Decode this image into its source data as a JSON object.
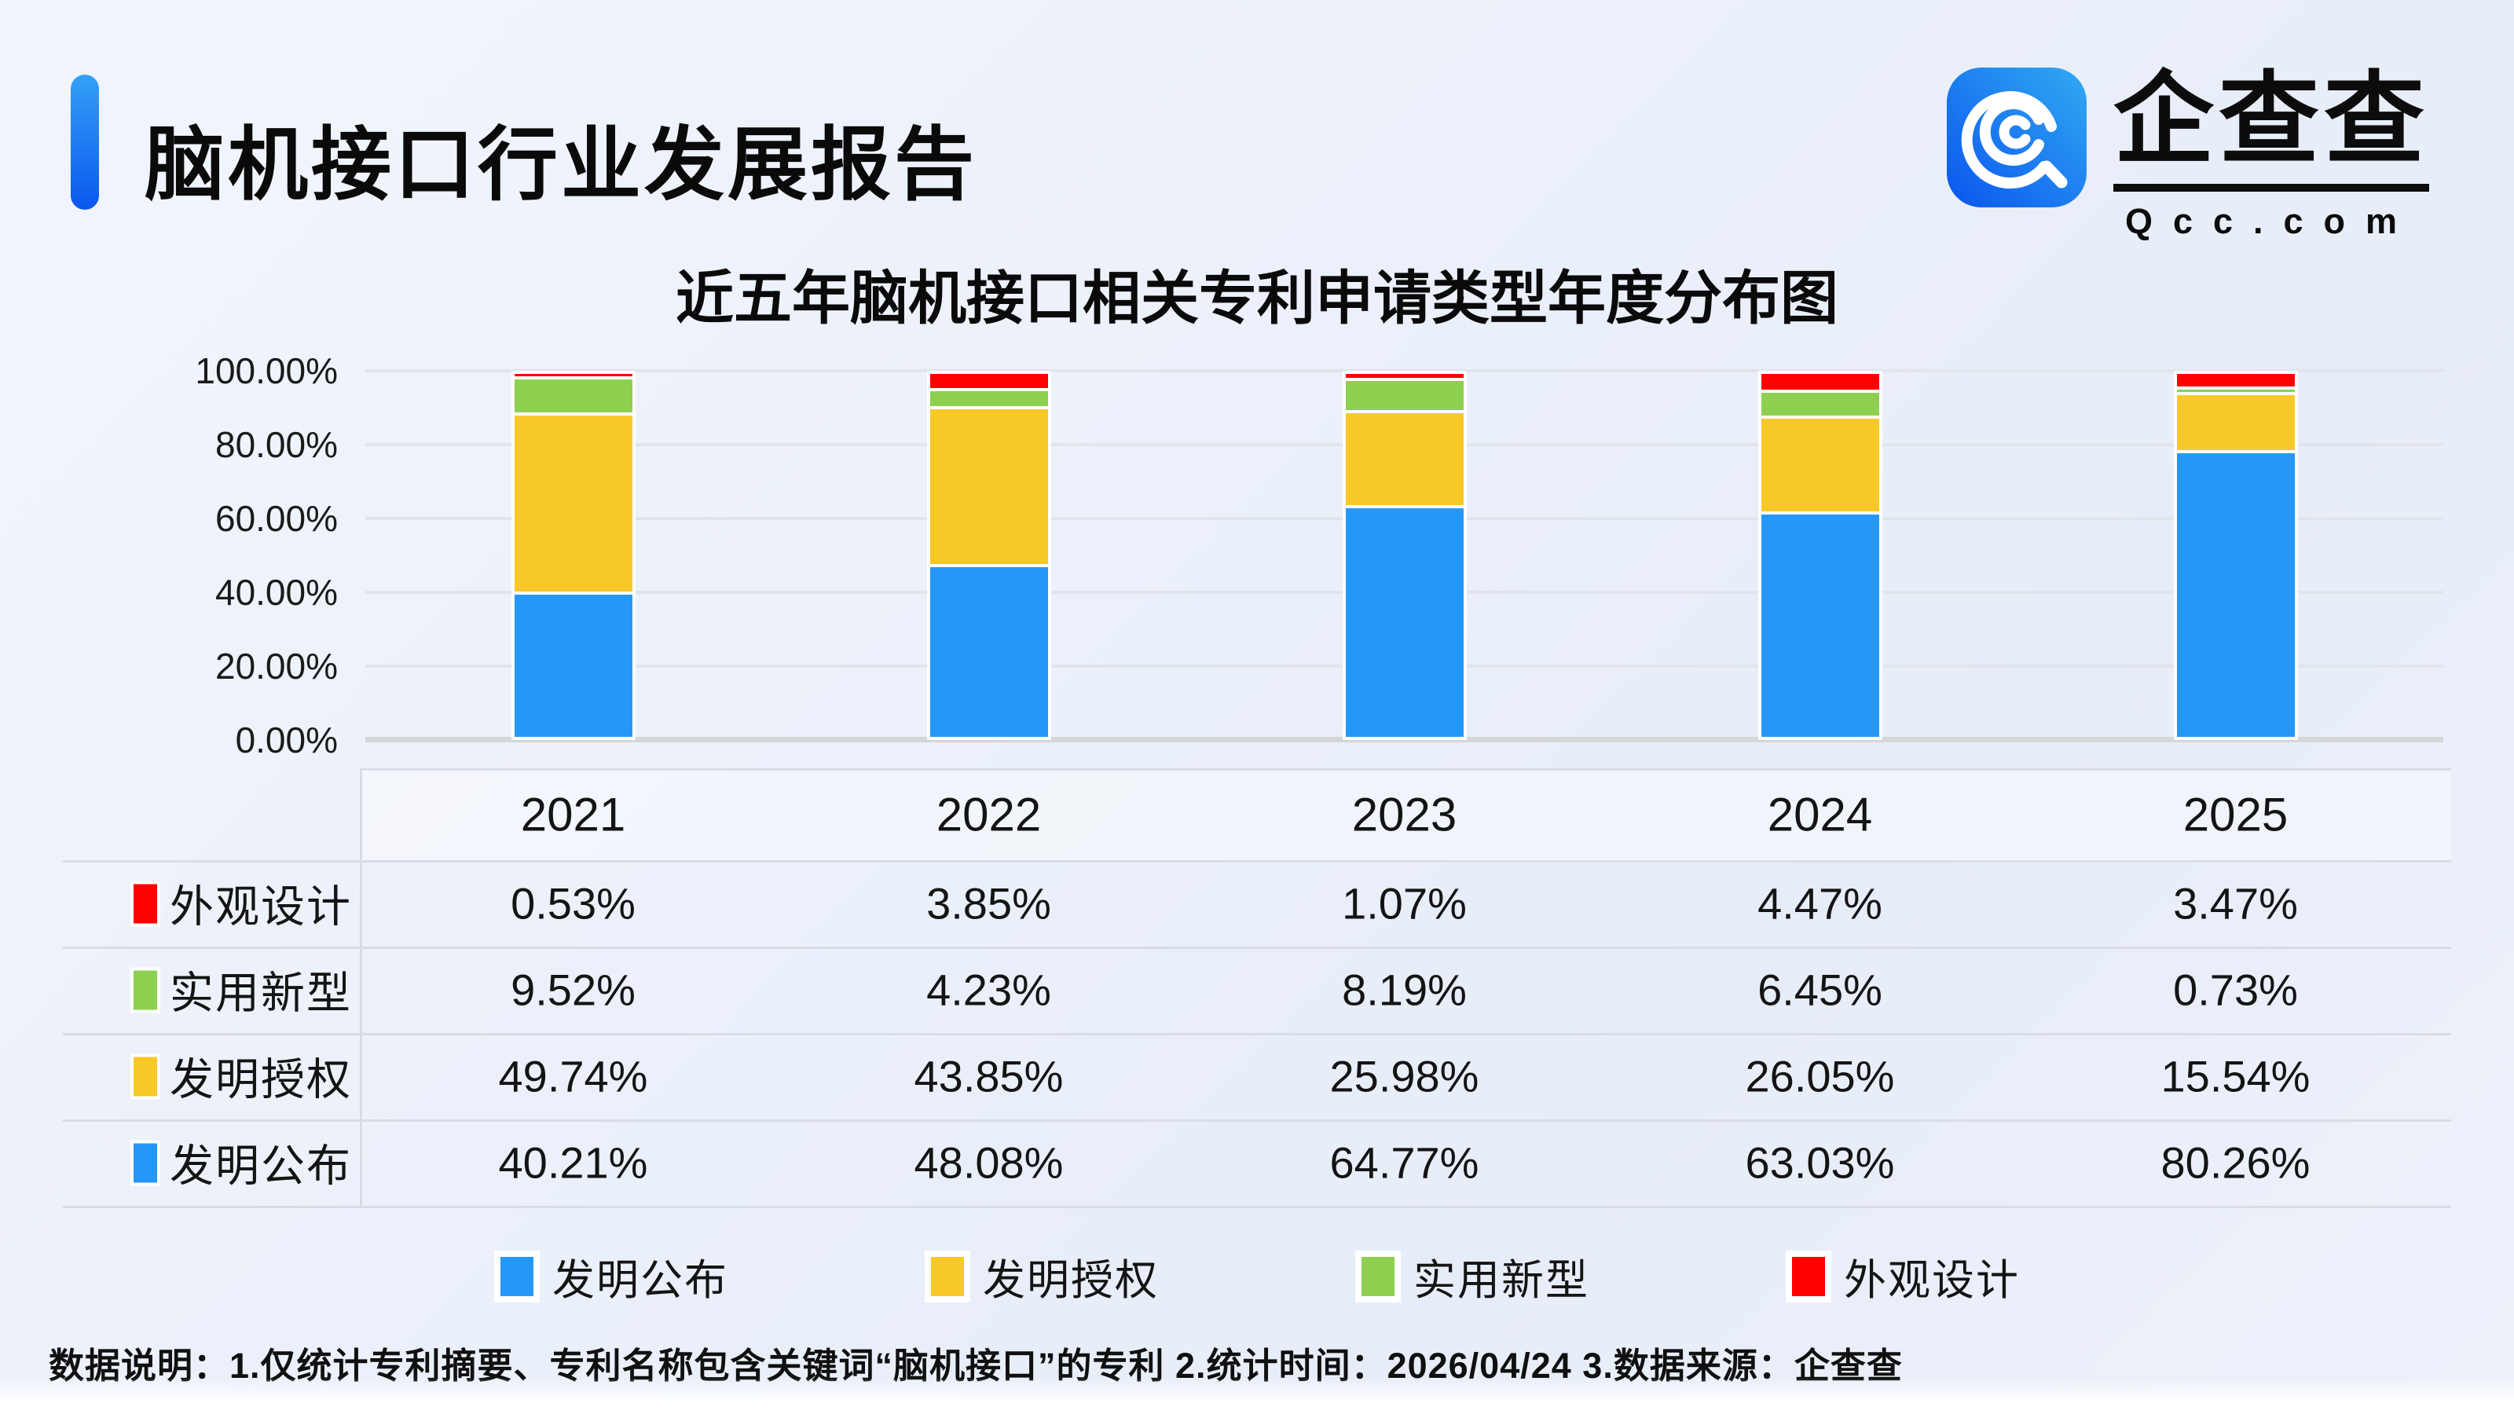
{
  "page": {
    "title": "脑机接口行业发展报告"
  },
  "logo": {
    "name": "企查查",
    "domain": "Qcc.com",
    "icon": "qcc-magnifier-icon",
    "icon_colors": [
      "#0b55ee",
      "#31aaf2"
    ]
  },
  "chart": {
    "y_ticks": [
      "100.00%",
      "80.00%",
      "60.00%",
      "40.00%",
      "20.00%",
      "0.00%"
    ]
  },
  "chart_data": {
    "type": "bar",
    "stacked": true,
    "title": "近五年脑机接口相关专利申请类型年度分布图",
    "categories": [
      "2021",
      "2022",
      "2023",
      "2024",
      "2025"
    ],
    "series": [
      {
        "name": "发明公布",
        "color": "#2598f7",
        "values": [
          40.21,
          48.08,
          64.77,
          63.03,
          80.26
        ]
      },
      {
        "name": "发明授权",
        "color": "#f8c829",
        "values": [
          49.74,
          43.85,
          25.98,
          26.05,
          15.54
        ]
      },
      {
        "name": "实用新型",
        "color": "#8dd04f",
        "values": [
          9.52,
          4.23,
          8.19,
          6.45,
          0.73
        ]
      },
      {
        "name": "外观设计",
        "color": "#fe0000",
        "values": [
          0.53,
          3.85,
          1.07,
          4.47,
          3.47
        ]
      }
    ],
    "xlabel": "",
    "ylabel": "",
    "ylim": [
      0,
      100
    ],
    "grid": true,
    "legend_position": "bottom"
  },
  "table": {
    "header": [
      "2021",
      "2022",
      "2023",
      "2024",
      "2025"
    ],
    "rows": [
      {
        "label": "外观设计",
        "color": "#fe0000",
        "values": [
          "0.53%",
          "3.85%",
          "1.07%",
          "4.47%",
          "3.47%"
        ]
      },
      {
        "label": "实用新型",
        "color": "#8dd04f",
        "values": [
          "9.52%",
          "4.23%",
          "8.19%",
          "6.45%",
          "0.73%"
        ]
      },
      {
        "label": "发明授权",
        "color": "#f8c829",
        "values": [
          "49.74%",
          "43.85%",
          "25.98%",
          "26.05%",
          "15.54%"
        ]
      },
      {
        "label": "发明公布",
        "color": "#2598f7",
        "values": [
          "40.21%",
          "48.08%",
          "64.77%",
          "63.03%",
          "80.26%"
        ]
      }
    ]
  },
  "footer": {
    "text": "数据说明：1.仅统计专利摘要、专利名称包含关键词“脑机接口”的专利  2.统计时间：2026/04/24   3.数据来源：企查查"
  }
}
